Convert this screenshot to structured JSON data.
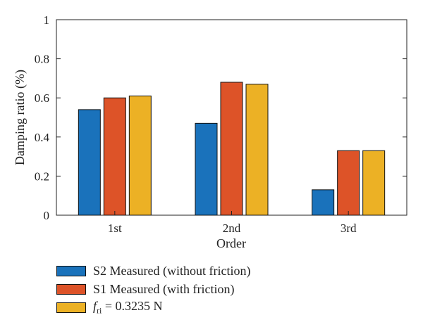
{
  "chart_data": {
    "type": "bar",
    "categories": [
      "1st",
      "2nd",
      "3rd"
    ],
    "series": [
      {
        "name": "S2 Measured (without friction)",
        "values": [
          0.54,
          0.47,
          0.13
        ],
        "color": "#1a72bb"
      },
      {
        "name": "S1 Measured (with friction)",
        "values": [
          0.6,
          0.68,
          0.33
        ],
        "color": "#dd5328"
      },
      {
        "name": "= 0.3235 N",
        "name_var": "f",
        "name_sub": "ri",
        "values": [
          0.61,
          0.67,
          0.33
        ],
        "color": "#ecb125"
      }
    ],
    "xlabel": "Order",
    "ylabel": "Damping ratio (%)",
    "ylim": [
      0,
      1
    ],
    "yticks": [
      "0",
      "0.2",
      "0.4",
      "0.6",
      "0.8",
      "1"
    ],
    "grid": false,
    "legend_position": "bottom"
  }
}
